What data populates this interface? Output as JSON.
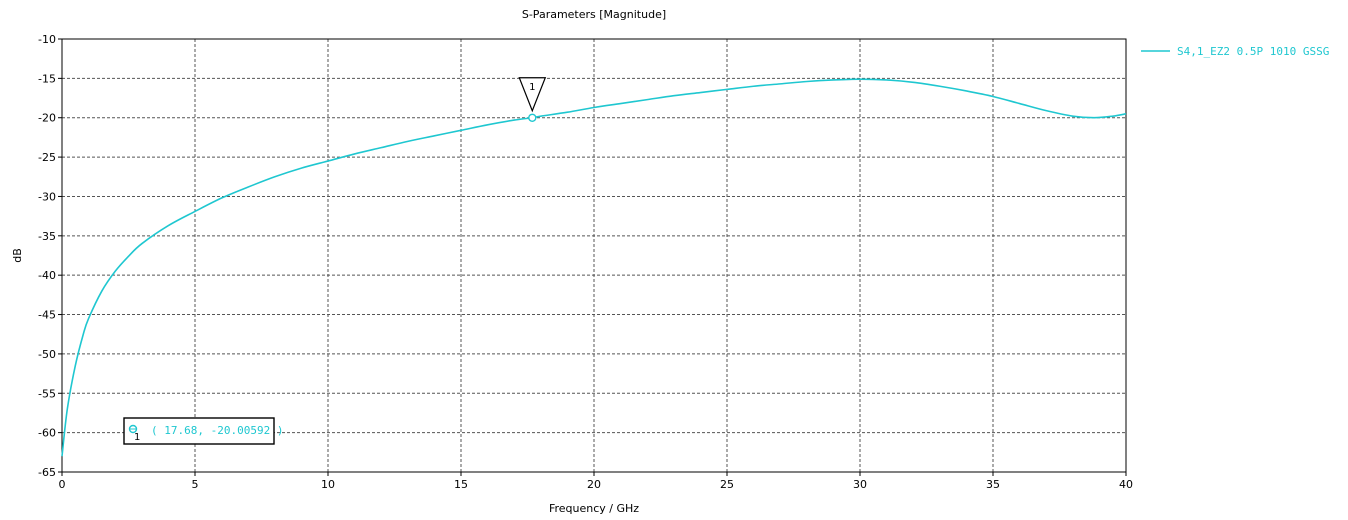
{
  "chart_data": {
    "type": "line",
    "title": "S-Parameters [Magnitude]",
    "xlabel": "Frequency / GHz",
    "ylabel": "dB",
    "xlim": [
      0,
      40
    ],
    "ylim": [
      -65,
      -10
    ],
    "xticks": [
      0,
      5,
      10,
      15,
      20,
      25,
      30,
      35,
      40
    ],
    "yticks": [
      -10,
      -15,
      -20,
      -25,
      -30,
      -35,
      -40,
      -45,
      -50,
      -55,
      -60,
      -65
    ],
    "grid": true,
    "grid_style": "dashed",
    "legend_position": "right",
    "series": [
      {
        "name": "S4,1_EZ2 0.5P 1010 GSSG",
        "color": "#1fc7d0",
        "x": [
          0,
          0.2,
          0.5,
          0.8,
          1,
          1.5,
          2,
          2.5,
          3,
          4,
          5,
          6,
          7,
          8,
          9,
          10,
          11,
          12,
          13,
          14,
          15,
          16,
          17,
          17.68,
          18,
          19,
          20,
          21,
          22,
          23,
          24,
          25,
          26,
          27,
          28,
          29,
          30,
          31,
          32,
          33,
          34,
          35,
          36,
          37,
          38,
          38.8,
          39.5,
          40
        ],
        "y": [
          -63.0,
          -57.0,
          -51.5,
          -47.5,
          -45.5,
          -42.0,
          -39.5,
          -37.6,
          -36.0,
          -33.7,
          -31.9,
          -30.2,
          -28.8,
          -27.5,
          -26.4,
          -25.5,
          -24.6,
          -23.8,
          -23.0,
          -22.3,
          -21.6,
          -20.9,
          -20.3,
          -20.0,
          -19.8,
          -19.3,
          -18.7,
          -18.2,
          -17.7,
          -17.2,
          -16.8,
          -16.4,
          -16.0,
          -15.7,
          -15.4,
          -15.2,
          -15.1,
          -15.2,
          -15.5,
          -16.0,
          -16.6,
          -17.3,
          -18.2,
          -19.1,
          -19.8,
          -20.0,
          -19.8,
          -19.5
        ]
      }
    ],
    "markers": [
      {
        "label": "1",
        "x": 17.68,
        "y": -20.00592,
        "readout": "( 17.68, -20.00592 )"
      }
    ]
  }
}
